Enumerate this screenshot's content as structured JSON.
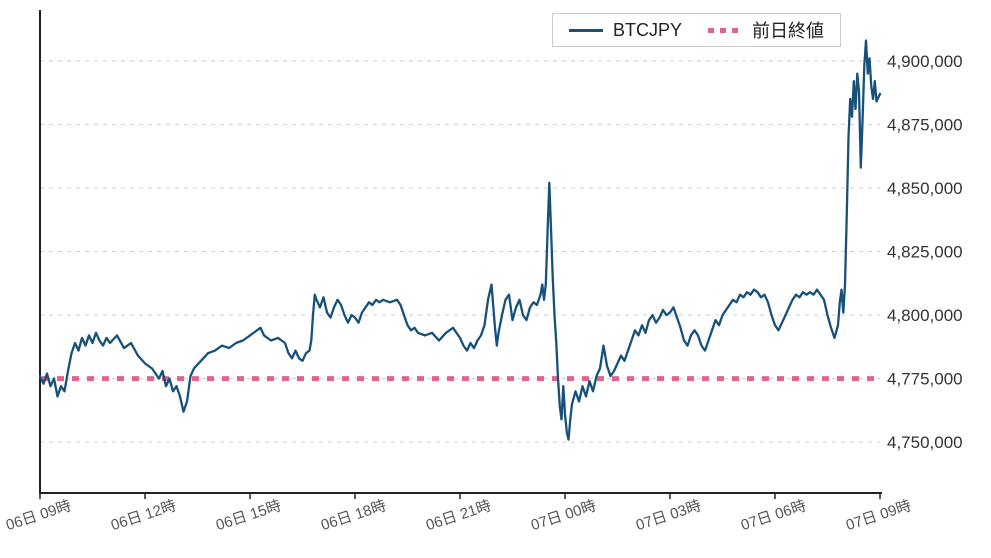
{
  "chart_data": {
    "type": "line",
    "title": "",
    "xlabel": "",
    "ylabel": "",
    "grid": "horizontal-dashed",
    "legend_position": "top-right",
    "xlim": [
      0,
      24
    ],
    "ylim": [
      4730000,
      4920000
    ],
    "y_ticks": [
      4750000,
      4775000,
      4800000,
      4825000,
      4850000,
      4875000,
      4900000
    ],
    "x_ticks": [
      {
        "t": 0,
        "label": "06日 09時"
      },
      {
        "t": 3,
        "label": "06日 12時"
      },
      {
        "t": 6,
        "label": "06日 15時"
      },
      {
        "t": 9,
        "label": "06日 18時"
      },
      {
        "t": 12,
        "label": "06日 21時"
      },
      {
        "t": 15,
        "label": "07日 00時"
      },
      {
        "t": 18,
        "label": "07日 03時"
      },
      {
        "t": 21,
        "label": "07日 06時"
      },
      {
        "t": 24,
        "label": "07日 09時"
      }
    ],
    "series": [
      {
        "name": "BTCJPY",
        "color": "#17517a",
        "points": [
          [
            0,
            4776000
          ],
          [
            0.1,
            4773000
          ],
          [
            0.2,
            4777000
          ],
          [
            0.3,
            4772000
          ],
          [
            0.4,
            4775000
          ],
          [
            0.5,
            4768000
          ],
          [
            0.6,
            4772000
          ],
          [
            0.7,
            4770000
          ],
          [
            0.8,
            4778000
          ],
          [
            0.9,
            4785000
          ],
          [
            1,
            4789000
          ],
          [
            1.1,
            4786000
          ],
          [
            1.2,
            4791000
          ],
          [
            1.3,
            4788000
          ],
          [
            1.4,
            4792000
          ],
          [
            1.5,
            4789000
          ],
          [
            1.6,
            4793000
          ],
          [
            1.7,
            4790000
          ],
          [
            1.8,
            4788000
          ],
          [
            1.9,
            4791000
          ],
          [
            2,
            4789000
          ],
          [
            2.2,
            4792000
          ],
          [
            2.4,
            4787000
          ],
          [
            2.6,
            4789000
          ],
          [
            2.8,
            4784000
          ],
          [
            3,
            4781000
          ],
          [
            3.2,
            4779000
          ],
          [
            3.4,
            4775000
          ],
          [
            3.5,
            4778000
          ],
          [
            3.6,
            4772000
          ],
          [
            3.7,
            4775000
          ],
          [
            3.8,
            4770000
          ],
          [
            3.9,
            4772000
          ],
          [
            4,
            4768000
          ],
          [
            4.1,
            4762000
          ],
          [
            4.2,
            4766000
          ],
          [
            4.3,
            4776000
          ],
          [
            4.4,
            4779000
          ],
          [
            4.6,
            4782000
          ],
          [
            4.8,
            4785000
          ],
          [
            5,
            4786000
          ],
          [
            5.2,
            4788000
          ],
          [
            5.4,
            4787000
          ],
          [
            5.6,
            4789000
          ],
          [
            5.8,
            4790000
          ],
          [
            6,
            4792000
          ],
          [
            6.2,
            4794000
          ],
          [
            6.3,
            4795000
          ],
          [
            6.4,
            4792000
          ],
          [
            6.6,
            4790000
          ],
          [
            6.8,
            4791000
          ],
          [
            7,
            4789000
          ],
          [
            7.1,
            4785000
          ],
          [
            7.2,
            4783000
          ],
          [
            7.3,
            4786000
          ],
          [
            7.4,
            4783000
          ],
          [
            7.5,
            4782000
          ],
          [
            7.6,
            4785000
          ],
          [
            7.7,
            4786000
          ],
          [
            7.75,
            4790000
          ],
          [
            7.8,
            4800000
          ],
          [
            7.85,
            4808000
          ],
          [
            7.9,
            4806000
          ],
          [
            8,
            4803000
          ],
          [
            8.1,
            4807000
          ],
          [
            8.2,
            4801000
          ],
          [
            8.3,
            4799000
          ],
          [
            8.4,
            4803000
          ],
          [
            8.5,
            4806000
          ],
          [
            8.6,
            4804000
          ],
          [
            8.7,
            4800000
          ],
          [
            8.8,
            4797000
          ],
          [
            8.9,
            4800000
          ],
          [
            9,
            4799000
          ],
          [
            9.1,
            4797000
          ],
          [
            9.2,
            4801000
          ],
          [
            9.3,
            4803000
          ],
          [
            9.4,
            4805000
          ],
          [
            9.5,
            4804000
          ],
          [
            9.6,
            4806000
          ],
          [
            9.7,
            4805000
          ],
          [
            9.8,
            4806000
          ],
          [
            10,
            4805000
          ],
          [
            10.2,
            4806000
          ],
          [
            10.3,
            4804000
          ],
          [
            10.4,
            4800000
          ],
          [
            10.5,
            4796000
          ],
          [
            10.6,
            4794000
          ],
          [
            10.7,
            4795000
          ],
          [
            10.8,
            4793000
          ],
          [
            11,
            4792000
          ],
          [
            11.2,
            4793000
          ],
          [
            11.4,
            4790000
          ],
          [
            11.6,
            4793000
          ],
          [
            11.8,
            4795000
          ],
          [
            12,
            4791000
          ],
          [
            12.1,
            4788000
          ],
          [
            12.2,
            4786000
          ],
          [
            12.3,
            4789000
          ],
          [
            12.4,
            4787000
          ],
          [
            12.5,
            4790000
          ],
          [
            12.6,
            4792000
          ],
          [
            12.7,
            4796000
          ],
          [
            12.8,
            4806000
          ],
          [
            12.9,
            4812000
          ],
          [
            13,
            4795000
          ],
          [
            13.05,
            4788000
          ],
          [
            13.1,
            4793000
          ],
          [
            13.2,
            4800000
          ],
          [
            13.3,
            4806000
          ],
          [
            13.4,
            4808000
          ],
          [
            13.5,
            4798000
          ],
          [
            13.6,
            4803000
          ],
          [
            13.7,
            4806000
          ],
          [
            13.8,
            4800000
          ],
          [
            13.9,
            4798000
          ],
          [
            14,
            4803000
          ],
          [
            14.1,
            4805000
          ],
          [
            14.2,
            4804000
          ],
          [
            14.3,
            4808000
          ],
          [
            14.35,
            4812000
          ],
          [
            14.4,
            4806000
          ],
          [
            14.45,
            4812000
          ],
          [
            14.5,
            4832000
          ],
          [
            14.55,
            4852000
          ],
          [
            14.6,
            4834000
          ],
          [
            14.65,
            4814000
          ],
          [
            14.7,
            4800000
          ],
          [
            14.75,
            4789000
          ],
          [
            14.8,
            4775000
          ],
          [
            14.85,
            4764000
          ],
          [
            14.9,
            4759000
          ],
          [
            14.95,
            4772000
          ],
          [
            15,
            4761000
          ],
          [
            15.05,
            4754000
          ],
          [
            15.1,
            4751000
          ],
          [
            15.15,
            4759000
          ],
          [
            15.2,
            4765000
          ],
          [
            15.3,
            4770000
          ],
          [
            15.4,
            4766000
          ],
          [
            15.5,
            4772000
          ],
          [
            15.6,
            4768000
          ],
          [
            15.7,
            4774000
          ],
          [
            15.8,
            4770000
          ],
          [
            15.9,
            4776000
          ],
          [
            16,
            4779000
          ],
          [
            16.1,
            4788000
          ],
          [
            16.2,
            4780000
          ],
          [
            16.3,
            4776000
          ],
          [
            16.4,
            4778000
          ],
          [
            16.5,
            4781000
          ],
          [
            16.6,
            4784000
          ],
          [
            16.7,
            4782000
          ],
          [
            16.8,
            4786000
          ],
          [
            16.9,
            4790000
          ],
          [
            17,
            4794000
          ],
          [
            17.1,
            4792000
          ],
          [
            17.2,
            4796000
          ],
          [
            17.3,
            4793000
          ],
          [
            17.4,
            4798000
          ],
          [
            17.5,
            4800000
          ],
          [
            17.6,
            4797000
          ],
          [
            17.7,
            4799000
          ],
          [
            17.8,
            4802000
          ],
          [
            17.9,
            4800000
          ],
          [
            18,
            4801000
          ],
          [
            18.1,
            4803000
          ],
          [
            18.2,
            4799000
          ],
          [
            18.3,
            4795000
          ],
          [
            18.4,
            4790000
          ],
          [
            18.5,
            4788000
          ],
          [
            18.6,
            4792000
          ],
          [
            18.7,
            4794000
          ],
          [
            18.8,
            4792000
          ],
          [
            18.9,
            4788000
          ],
          [
            19,
            4786000
          ],
          [
            19.1,
            4790000
          ],
          [
            19.2,
            4794000
          ],
          [
            19.3,
            4798000
          ],
          [
            19.4,
            4796000
          ],
          [
            19.5,
            4800000
          ],
          [
            19.6,
            4802000
          ],
          [
            19.7,
            4804000
          ],
          [
            19.8,
            4806000
          ],
          [
            19.9,
            4805000
          ],
          [
            20,
            4808000
          ],
          [
            20.1,
            4807000
          ],
          [
            20.2,
            4809000
          ],
          [
            20.3,
            4808000
          ],
          [
            20.4,
            4810000
          ],
          [
            20.5,
            4809000
          ],
          [
            20.6,
            4807000
          ],
          [
            20.7,
            4808000
          ],
          [
            20.8,
            4805000
          ],
          [
            20.9,
            4800000
          ],
          [
            21,
            4796000
          ],
          [
            21.1,
            4794000
          ],
          [
            21.2,
            4797000
          ],
          [
            21.3,
            4800000
          ],
          [
            21.4,
            4803000
          ],
          [
            21.5,
            4806000
          ],
          [
            21.6,
            4808000
          ],
          [
            21.7,
            4807000
          ],
          [
            21.8,
            4809000
          ],
          [
            21.9,
            4808000
          ],
          [
            22,
            4809000
          ],
          [
            22.1,
            4808000
          ],
          [
            22.2,
            4810000
          ],
          [
            22.3,
            4808000
          ],
          [
            22.4,
            4806000
          ],
          [
            22.5,
            4800000
          ],
          [
            22.6,
            4795000
          ],
          [
            22.7,
            4791000
          ],
          [
            22.8,
            4796000
          ],
          [
            22.85,
            4805000
          ],
          [
            22.9,
            4810000
          ],
          [
            22.95,
            4801000
          ],
          [
            23,
            4812000
          ],
          [
            23.05,
            4840000
          ],
          [
            23.1,
            4870000
          ],
          [
            23.15,
            4885000
          ],
          [
            23.2,
            4878000
          ],
          [
            23.25,
            4892000
          ],
          [
            23.3,
            4881000
          ],
          [
            23.35,
            4895000
          ],
          [
            23.4,
            4888000
          ],
          [
            23.45,
            4858000
          ],
          [
            23.5,
            4876000
          ],
          [
            23.55,
            4898000
          ],
          [
            23.6,
            4908000
          ],
          [
            23.65,
            4895000
          ],
          [
            23.7,
            4901000
          ],
          [
            23.75,
            4890000
          ],
          [
            23.8,
            4885000
          ],
          [
            23.85,
            4892000
          ],
          [
            23.9,
            4884000
          ],
          [
            24,
            4887000
          ]
        ]
      }
    ],
    "reference_line": {
      "name": "前日終値",
      "value": 4775000,
      "color": "#e0648f",
      "style": "dotted"
    }
  },
  "colors": {
    "series": "#17517a",
    "reference": "#e0648f",
    "grid": "#cfcfcf",
    "axis": "#222222",
    "y_tick_text": "#333333",
    "x_tick_text": "#555555",
    "background": "#ffffff"
  },
  "legend": {
    "series_label": "BTCJPY",
    "reference_label": "前日終値"
  }
}
